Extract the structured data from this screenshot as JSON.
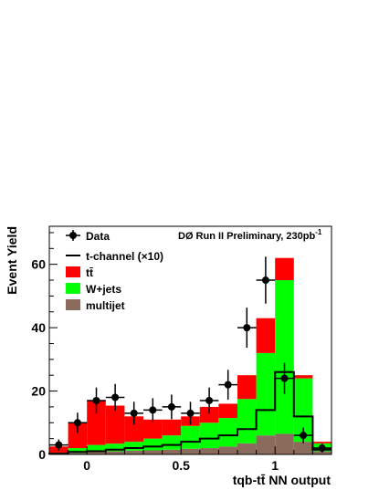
{
  "chart_data": {
    "type": "bar",
    "title": "DØ Run II Preliminary, 230pb",
    "title_superscript": "-1",
    "xlabel": "tqb-tt̄ NN output",
    "ylabel": "Event Yield",
    "xlim": [
      -0.2,
      1.3
    ],
    "ylim": [
      0,
      72
    ],
    "x_ticks": [
      0,
      0.5,
      1
    ],
    "y_ticks": [
      0,
      20,
      40,
      60
    ],
    "bin_edges": [
      -0.2,
      -0.1,
      0,
      0.1,
      0.2,
      0.3,
      0.4,
      0.5,
      0.6,
      0.7,
      0.8,
      0.9,
      1.0,
      1.1,
      1.2,
      1.3
    ],
    "stack": [
      {
        "name": "multijet",
        "color": "#8b6b5c",
        "values": [
          0.3,
          0.5,
          0.8,
          1.0,
          1.2,
          1.3,
          1.5,
          1.8,
          2.0,
          2.5,
          3.5,
          6.0,
          6.5,
          4.0,
          1.0
        ]
      },
      {
        "name": "W+jets",
        "color": "#00ff00",
        "values": [
          0.2,
          1.5,
          2.2,
          2.4,
          2.8,
          3.7,
          4.5,
          7.2,
          8.0,
          9.0,
          14.0,
          26.0,
          48.5,
          20.0,
          2.5
        ]
      },
      {
        "name": "tt̄",
        "color": "#ff0000",
        "values": [
          2.0,
          8.0,
          14.0,
          12.0,
          8.0,
          6.0,
          5.0,
          3.0,
          5.0,
          4.5,
          7.5,
          11.0,
          7.0,
          1.0,
          0.5
        ]
      }
    ],
    "t_channel": {
      "name": "t-channel (×10)",
      "color": "#000000",
      "values": [
        0.2,
        0.8,
        1.0,
        1.5,
        2.0,
        2.5,
        3.0,
        4.0,
        5.0,
        6.0,
        8.0,
        14.0,
        26.0,
        12.0,
        1.5
      ]
    },
    "data": {
      "name": "Data",
      "color": "#000000",
      "x": [
        -0.15,
        -0.05,
        0.05,
        0.15,
        0.25,
        0.35,
        0.45,
        0.55,
        0.65,
        0.75,
        0.85,
        0.95,
        1.05,
        1.15,
        1.25
      ],
      "y": [
        3,
        10,
        17,
        18,
        13,
        14,
        15,
        13,
        17,
        22,
        40,
        55,
        24,
        6,
        2
      ]
    },
    "legend": [
      "Data",
      "t-channel (×10)",
      "tt̄",
      "W+jets",
      "multijet"
    ],
    "legend_placement": "top-left"
  }
}
